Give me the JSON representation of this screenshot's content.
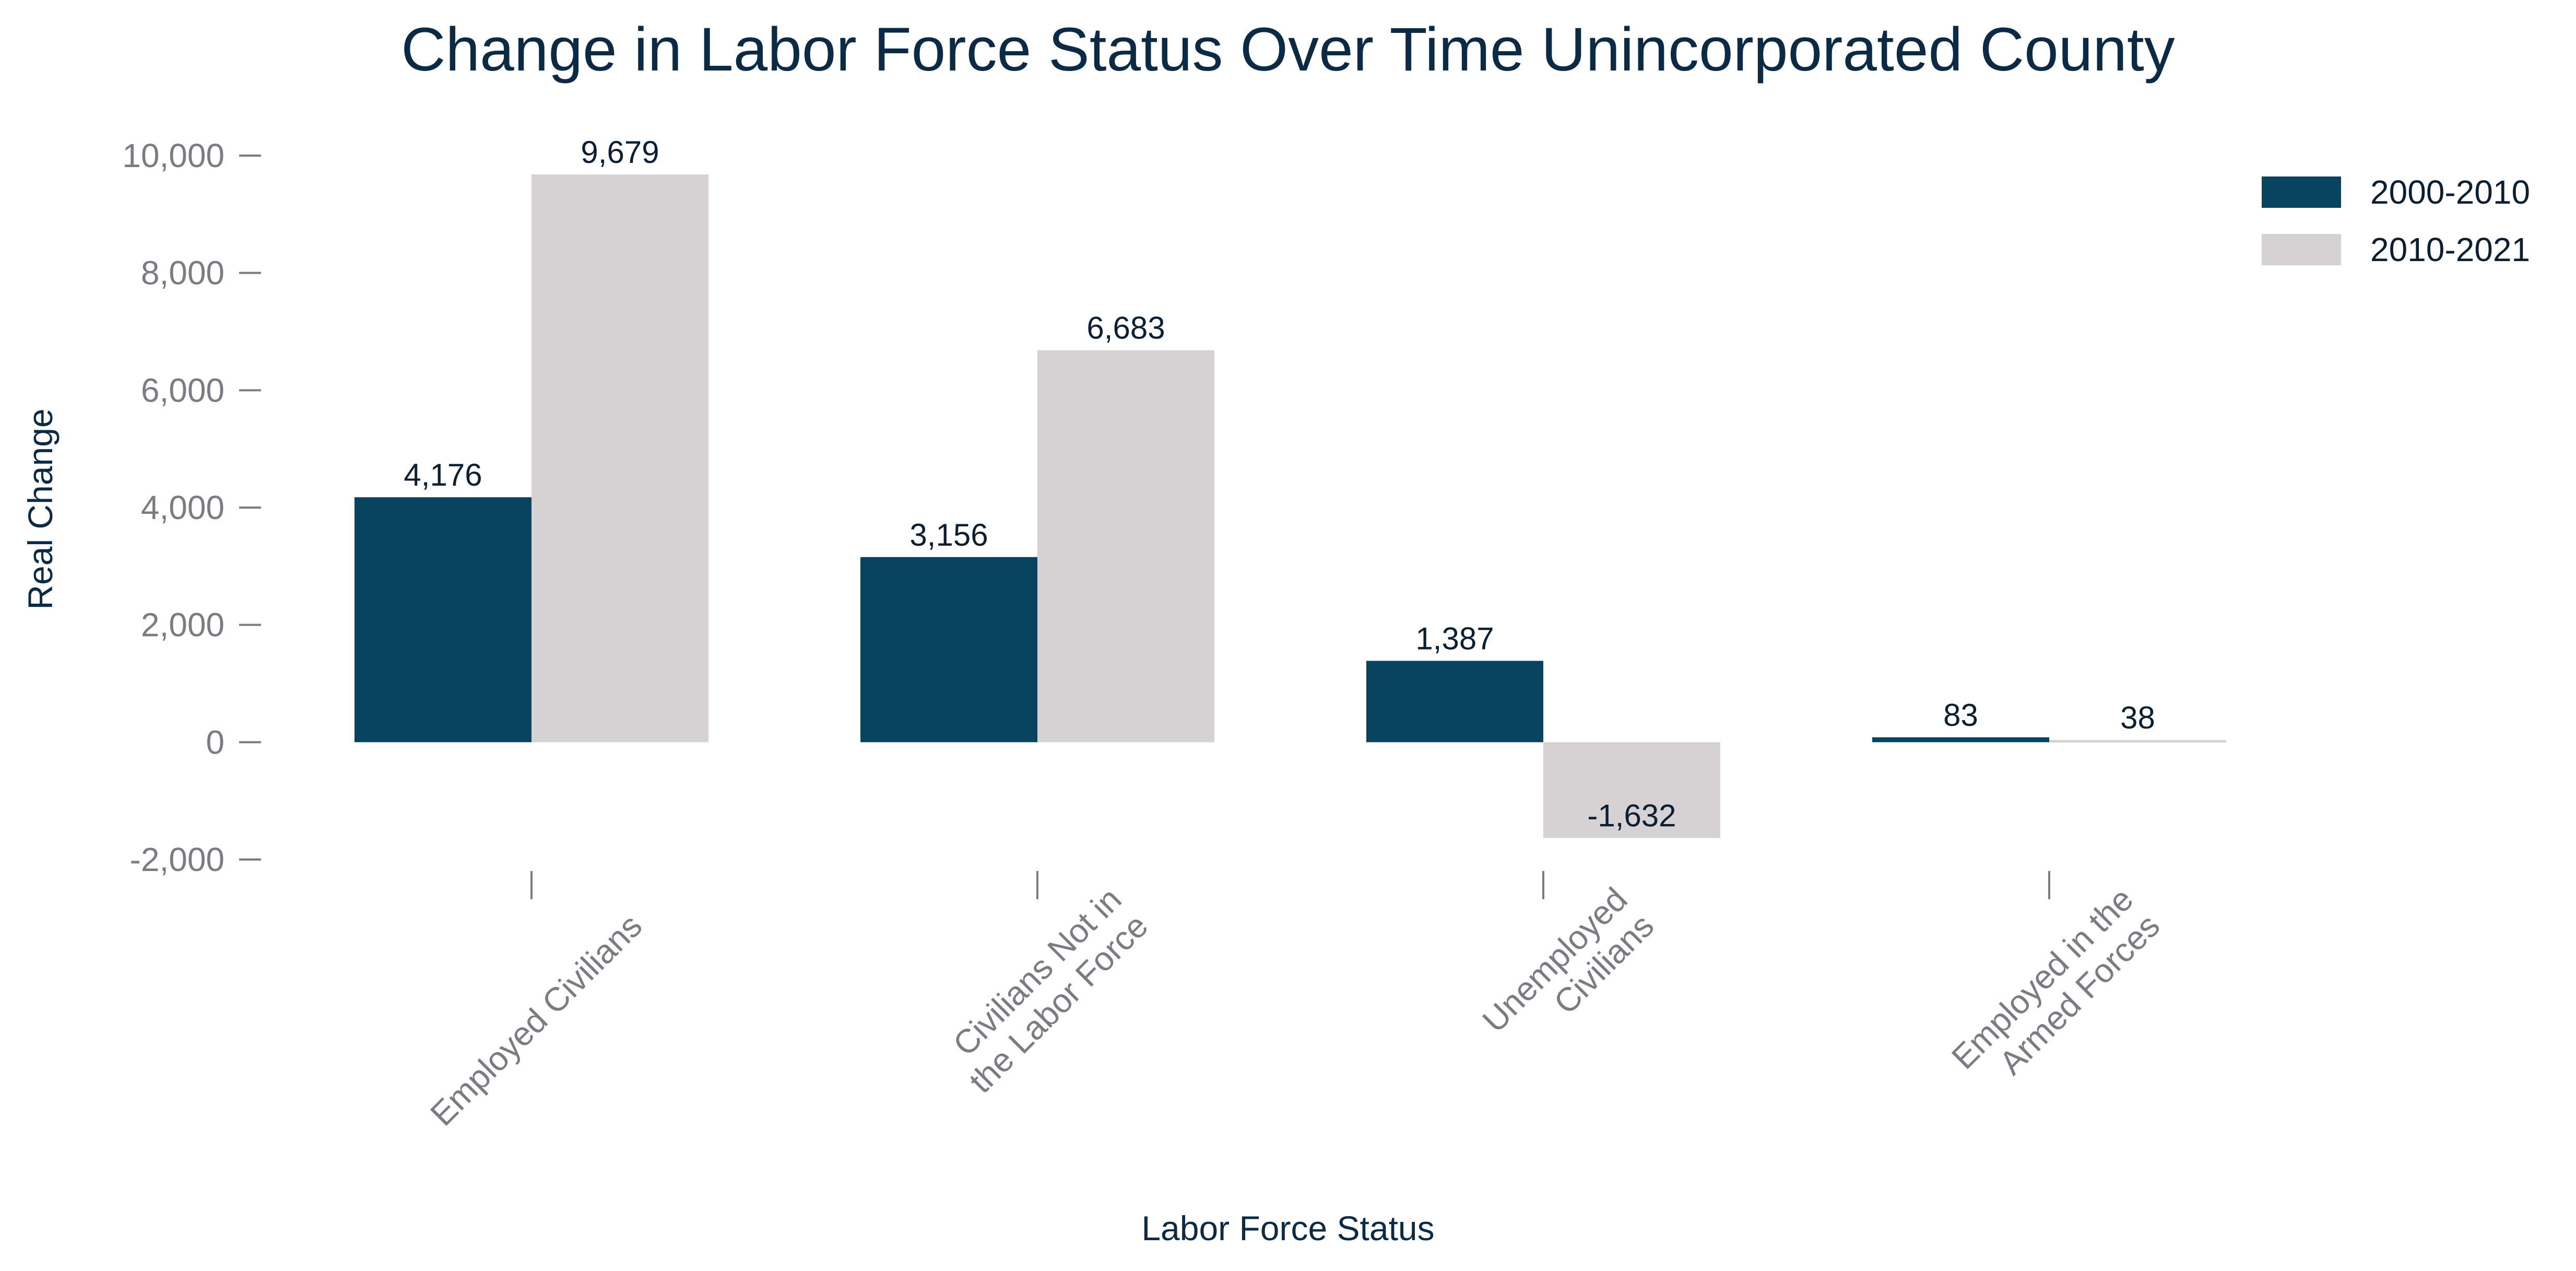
{
  "chart_data": {
    "type": "bar",
    "title": "Change in Labor Force Status Over Time Unincorporated County",
    "xlabel": "Labor Force Status",
    "ylabel": "Real Change",
    "categories": [
      [
        "Employed Civilians"
      ],
      [
        "Civilians Not in",
        "the Labor Force"
      ],
      [
        "Unemployed",
        "Civilians"
      ],
      [
        "Employed in the",
        "Armed Forces"
      ]
    ],
    "series": [
      {
        "name": "2000-2010",
        "color": "#08445f",
        "values": [
          4176,
          3156,
          1387,
          83
        ],
        "labels": [
          "4,176",
          "3,156",
          "1,387",
          "83"
        ]
      },
      {
        "name": "2010-2021",
        "color": "#d6d1d3",
        "values": [
          9679,
          6683,
          -1632,
          38
        ],
        "labels": [
          "9,679",
          "6,683",
          "-1,632",
          "38"
        ]
      }
    ],
    "y_ticks": [
      10000,
      8000,
      6000,
      4000,
      2000,
      0,
      -2000
    ],
    "y_tick_labels": [
      "10,000",
      "8,000",
      "6,000",
      "4,000",
      "2,000",
      "0",
      "-2,000"
    ],
    "ylim": [
      -2000,
      10000
    ],
    "grid": false,
    "legend_position": "top-right",
    "x_tick_rotation_deg": -45
  }
}
